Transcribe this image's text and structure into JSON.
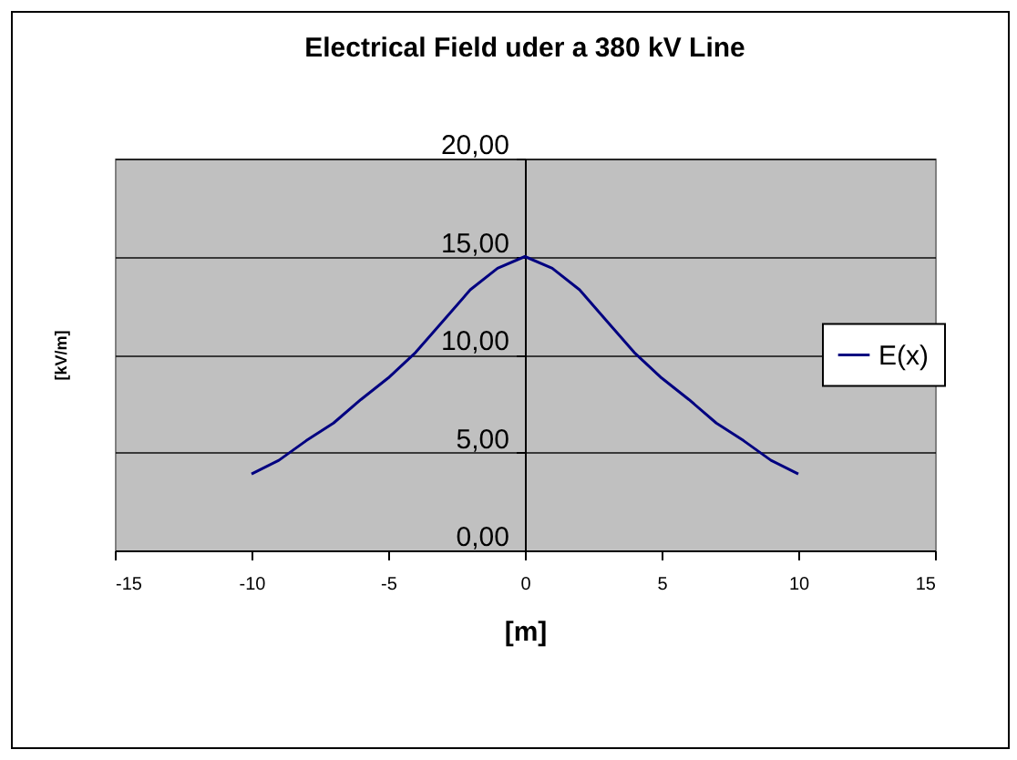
{
  "chart_data": {
    "type": "line",
    "title": "Electrical Field uder a 380 kV Line",
    "xlabel": "[m]",
    "ylabel": "[kV/m]",
    "x": [
      -10,
      -9,
      -8,
      -7,
      -6,
      -5,
      -4,
      -3,
      -2,
      -1,
      0,
      1,
      2,
      3,
      4,
      5,
      6,
      7,
      8,
      9,
      10
    ],
    "series": [
      {
        "name": "E(x)",
        "color": "#000080",
        "values": [
          3.9,
          4.6,
          5.6,
          6.5,
          7.7,
          8.8,
          10.1,
          11.7,
          13.3,
          14.4,
          15.0,
          14.4,
          13.3,
          11.7,
          10.1,
          8.8,
          7.7,
          6.5,
          5.6,
          4.6,
          3.9
        ]
      }
    ],
    "xlim": [
      -15,
      15
    ],
    "xticks": [
      -15,
      -10,
      -5,
      0,
      5,
      10,
      15
    ],
    "ylim": [
      0,
      20
    ],
    "yticks": [
      {
        "value": 0,
        "label": "0,00"
      },
      {
        "value": 5,
        "label": "5,00"
      },
      {
        "value": 10,
        "label": "10,00"
      },
      {
        "value": 15,
        "label": "15,00"
      },
      {
        "value": 20,
        "label": "20,00"
      }
    ],
    "grid": "y",
    "legend": "right",
    "marker": "none",
    "line_style": "solid"
  }
}
